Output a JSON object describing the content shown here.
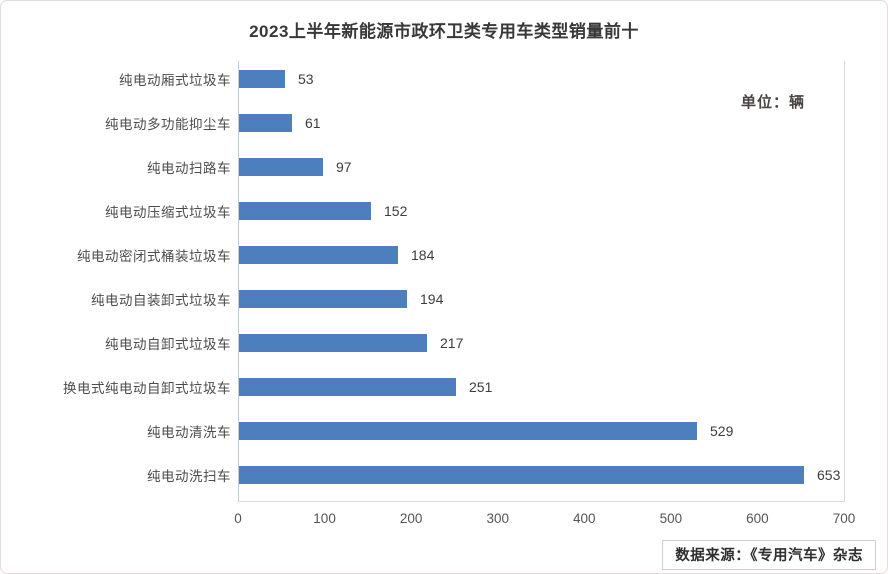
{
  "frame": {
    "title": "2023上半年新能源市政环卫类专用车类型销量前十",
    "unit_label": "单位：辆",
    "source_label": "数据来源：《专用汽车》杂志"
  },
  "chart_data": {
    "type": "bar",
    "orientation": "horizontal",
    "title": "2023上半年新能源市政环卫类专用车类型销量前十",
    "unit": "辆",
    "categories": [
      "纯电动厢式垃圾车",
      "纯电动多功能抑尘车",
      "纯电动扫路车",
      "纯电动压缩式垃圾车",
      "纯电动密闭式桶装垃圾车",
      "纯电动自装卸式垃圾车",
      "纯电动自卸式垃圾车",
      "换电式纯电动自卸式垃圾车",
      "纯电动清洗车",
      "纯电动洗扫车"
    ],
    "values": [
      53,
      61,
      97,
      152,
      184,
      194,
      217,
      251,
      529,
      653
    ],
    "x_ticks": [
      0,
      100,
      200,
      300,
      400,
      500,
      600,
      700
    ],
    "xlim": [
      0,
      700
    ],
    "grid": false,
    "data_labels": true,
    "legend": "none",
    "bar_color": "#4d7ebd",
    "source": "数据来源：《专用汽车》杂志"
  }
}
